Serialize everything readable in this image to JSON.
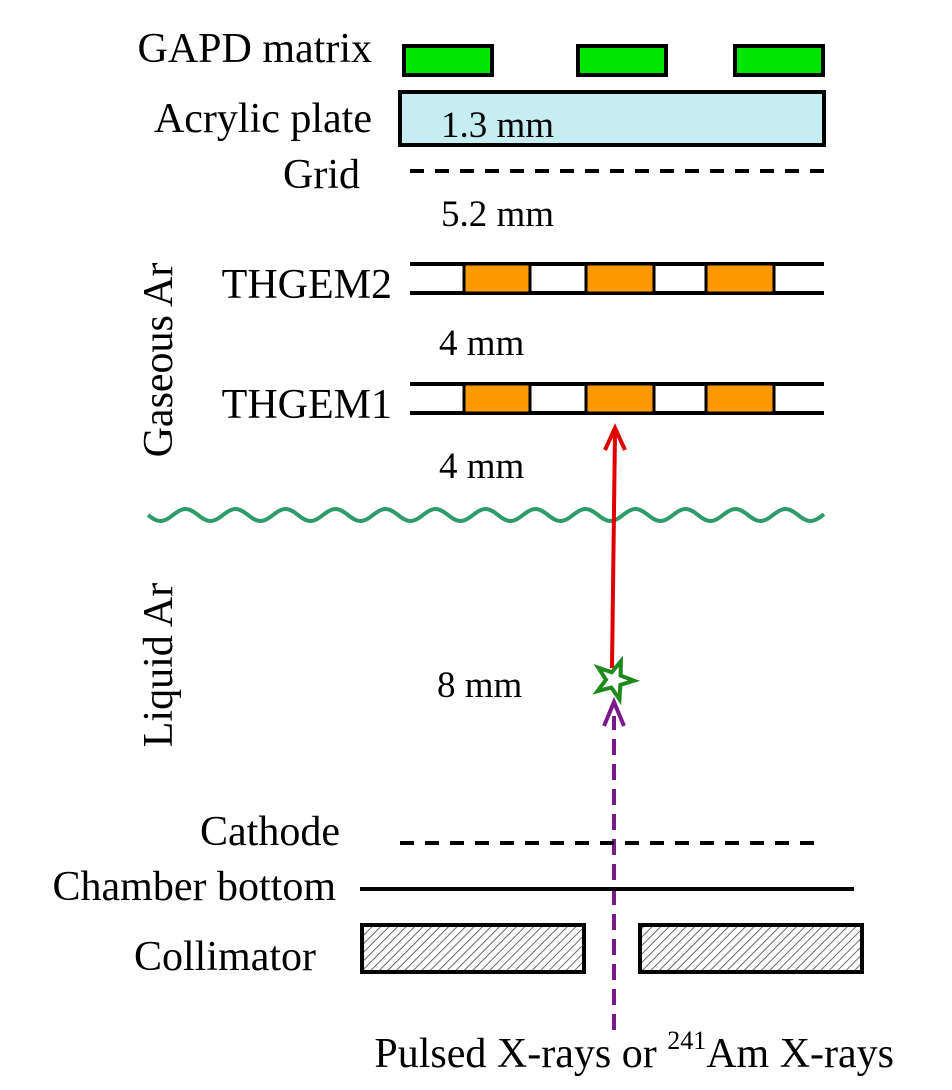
{
  "labels": {
    "gapd_matrix": "GAPD matrix",
    "acrylic_plate": "Acrylic plate",
    "grid": "Grid",
    "thgem2": "THGEM2",
    "thgem1": "THGEM1",
    "cathode": "Cathode",
    "chamber_bottom": "Chamber bottom",
    "collimator": "Collimator"
  },
  "regions": {
    "gaseous": "Gaseous Ar",
    "liquid": "Liquid Ar"
  },
  "dimensions": {
    "acrylic_thickness": "1.3 mm",
    "grid_to_thgem2": "5.2 mm",
    "thgem2_to_thgem1": "4 mm",
    "thgem1_to_liquid": "4 mm",
    "liquid_depth": "8 mm"
  },
  "source": {
    "prefix": "Pulsed X-rays or ",
    "isotope_mass": "241",
    "suffix": "Am X-rays"
  },
  "colors": {
    "gapd": "#00e600",
    "acrylic": "#c6eef2",
    "thgem_hole": "#ff9900",
    "liquid_surface": "#2e9c6a",
    "electron_drift": "#e00000",
    "interaction_star": "#1e8a1e",
    "xray_path": "#7a1a8a"
  }
}
